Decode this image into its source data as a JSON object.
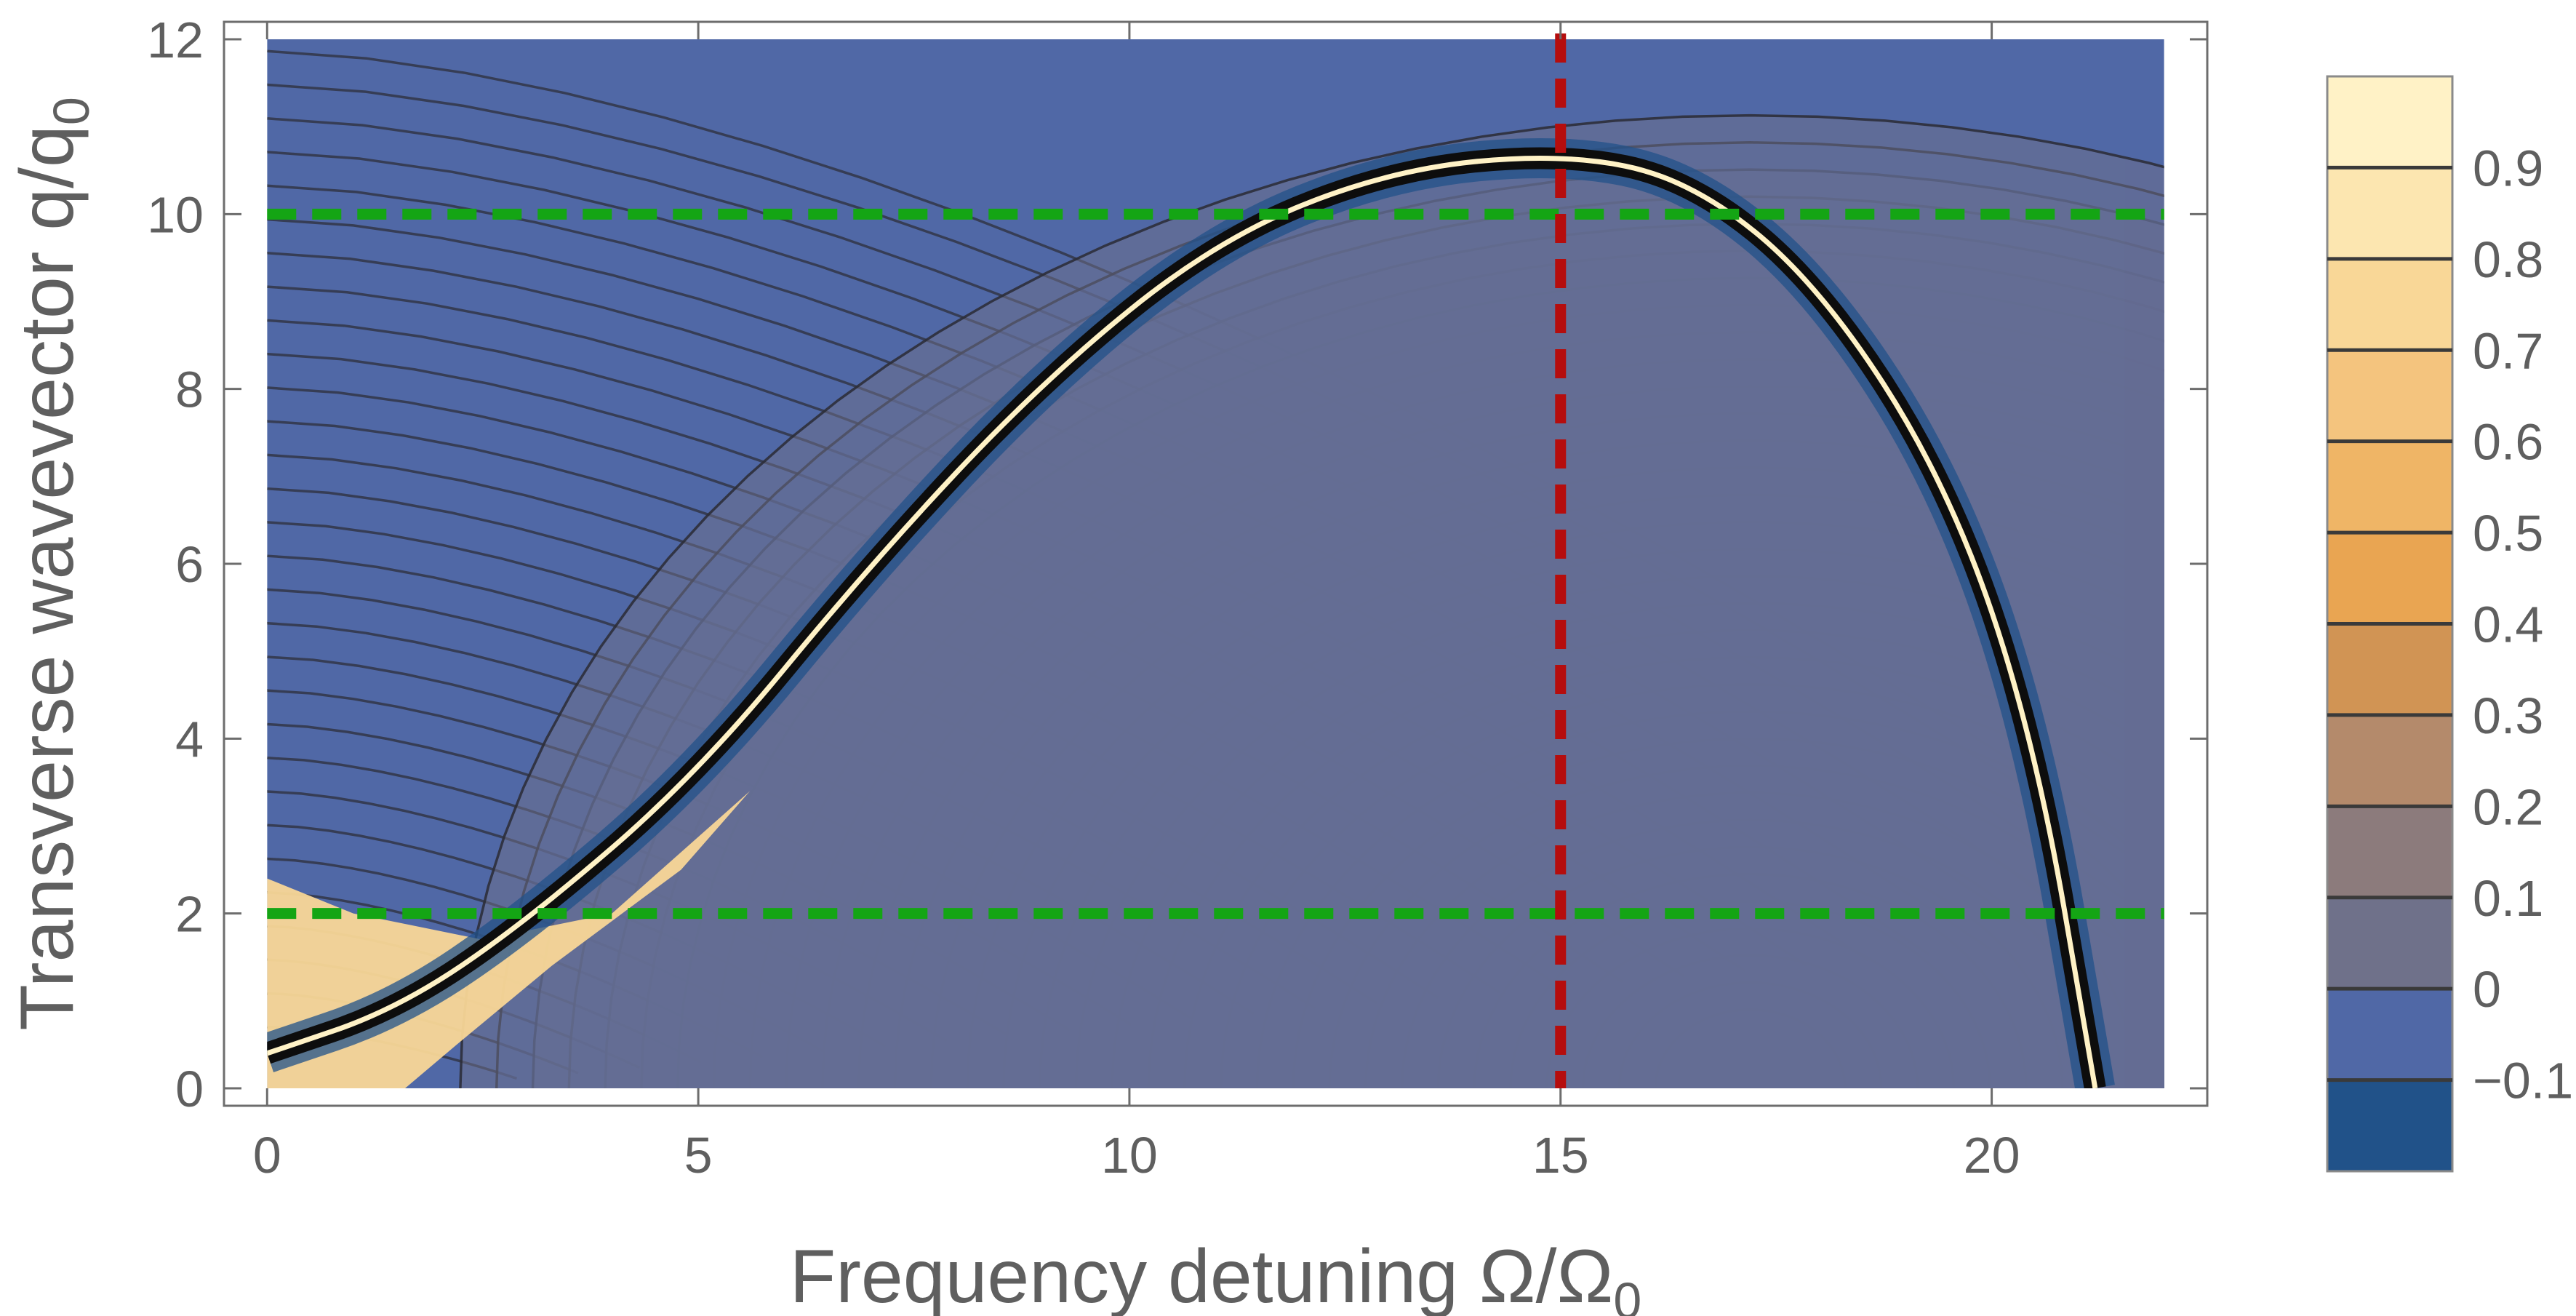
{
  "chart_data": {
    "type": "contour",
    "xlabel": "Frequency detuning  Ω/Ω",
    "xlabel_sub": "0",
    "ylabel": "Transverse wavevector q/q",
    "ylabel_sub": "0",
    "xlim": [
      -0.5,
      22.5
    ],
    "ylim": [
      -0.2,
      12.2
    ],
    "data_x_range": [
      0,
      22
    ],
    "data_y_range": [
      0,
      12
    ],
    "xticks": [
      0,
      5,
      10,
      15,
      20
    ],
    "xtick_labels": [
      "0",
      "5",
      "10",
      "15",
      "20"
    ],
    "yticks": [
      0,
      2,
      4,
      6,
      8,
      10,
      12
    ],
    "ytick_labels": [
      "0",
      "2",
      "4",
      "6",
      "8",
      "10",
      "12"
    ],
    "grid": false,
    "contour_levels": [
      -0.1,
      0,
      0.1,
      0.2,
      0.3,
      0.4,
      0.5,
      0.6,
      0.7,
      0.8,
      0.9
    ],
    "colorbar": {
      "range": [
        -0.2,
        1.0
      ],
      "ticks": [
        0.9,
        0.8,
        0.7,
        0.6,
        0.5,
        0.4,
        0.3,
        0.2,
        0.1,
        0,
        -0.1
      ],
      "tick_labels": [
        "0.9",
        "0.8",
        "0.7",
        "0.6",
        "0.5",
        "0.4",
        "0.3",
        "0.2",
        "0.1",
        "0",
        "−0.1"
      ],
      "colors": [
        "#215289",
        "#5068a6",
        "#6f718a",
        "#8c7b7c",
        "#b48a6b",
        "#d19454",
        "#e9a552",
        "#efb566",
        "#f4c47e",
        "#f9d797",
        "#fce6b0",
        "#fff2c6"
      ]
    },
    "ridge_curve": {
      "color": "#fff2c6",
      "points": [
        [
          0,
          0.4
        ],
        [
          1.5,
          0.9
        ],
        [
          3,
          1.9
        ],
        [
          5,
          3.6
        ],
        [
          7,
          6.0
        ],
        [
          9,
          8.1
        ],
        [
          11,
          9.7
        ],
        [
          13,
          10.5
        ],
        [
          15,
          10.7
        ],
        [
          16.5,
          10.4
        ],
        [
          18,
          9.2
        ],
        [
          19.5,
          6.9
        ],
        [
          20.5,
          4.0
        ],
        [
          21.2,
          0
        ]
      ]
    },
    "ridge_vertex": [
      15,
      10.7
    ],
    "ridge_zero": 21.2,
    "tail_center": [
      17.2,
      0
    ],
    "reference_lines": [
      {
        "orientation": "horizontal",
        "y": 10,
        "color": "#14a514",
        "style": "dashed"
      },
      {
        "orientation": "horizontal",
        "y": 2,
        "color": "#14a514",
        "style": "dashed"
      },
      {
        "orientation": "vertical",
        "x": 15,
        "color": "#b50d0d",
        "style": "dashed"
      }
    ]
  }
}
